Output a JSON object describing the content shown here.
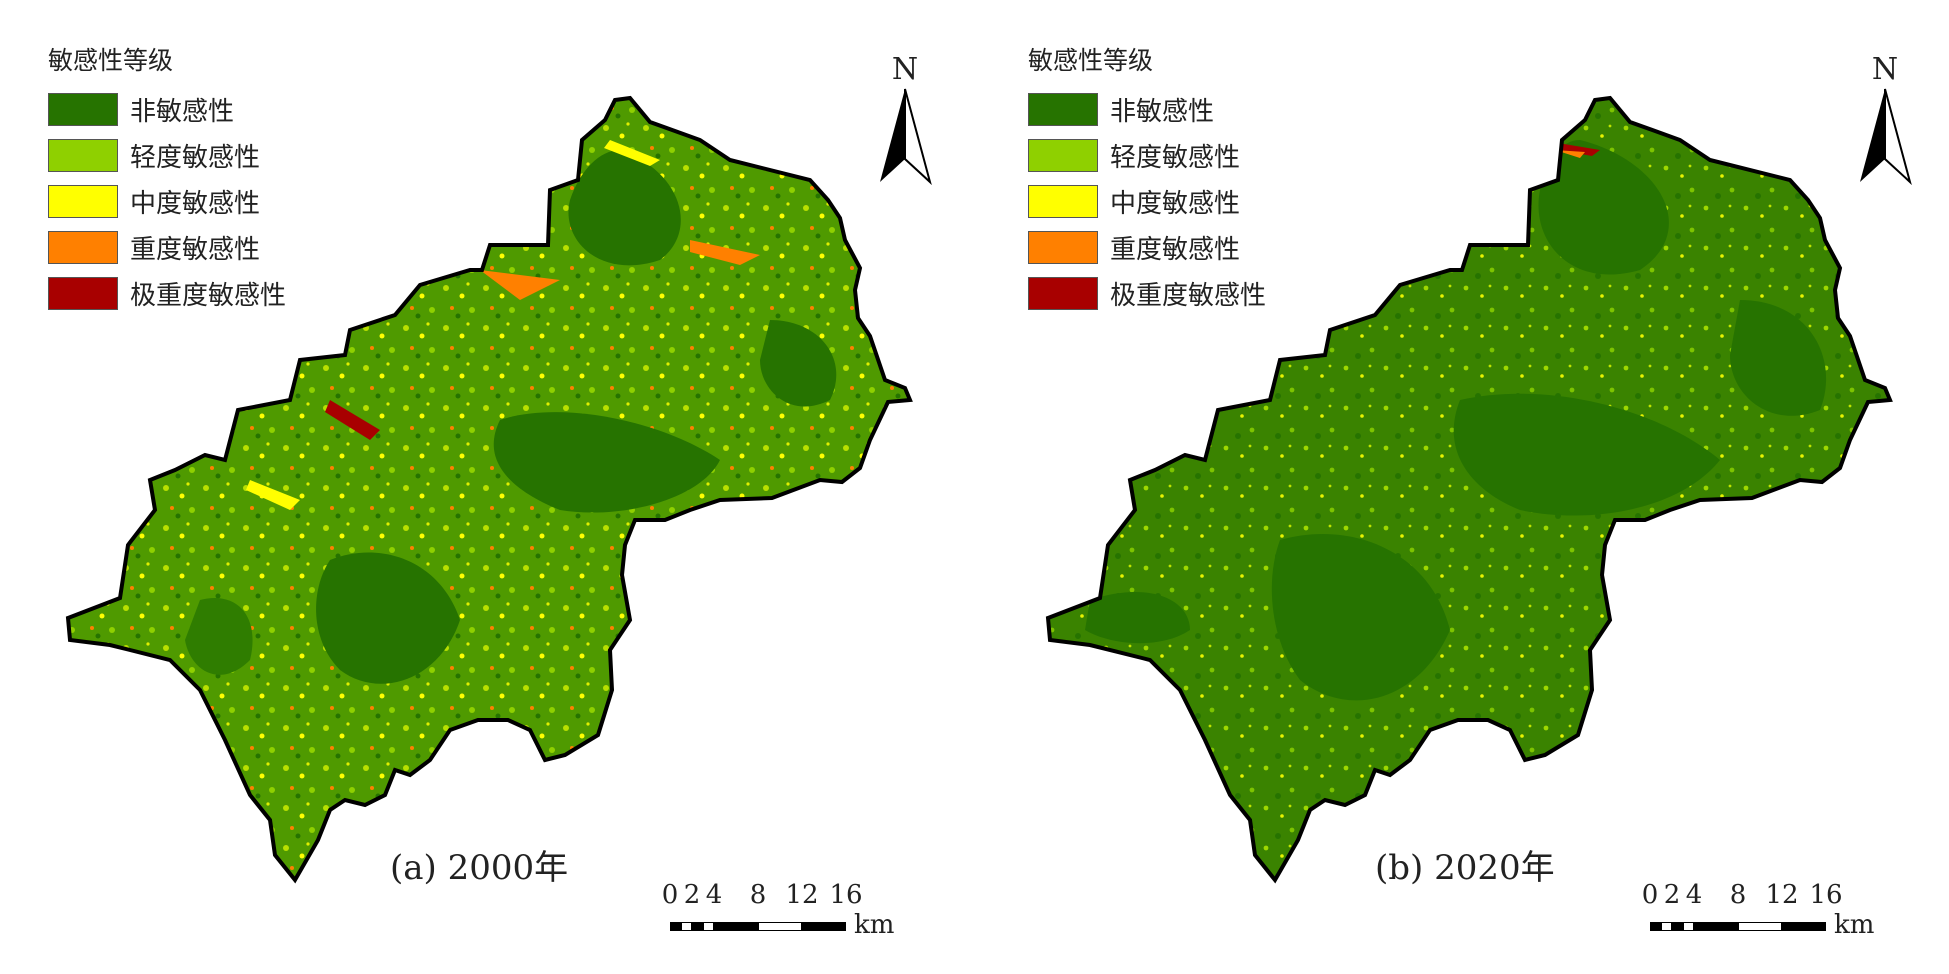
{
  "legend": {
    "title": "敏感性等级",
    "items": [
      {
        "label": "非敏感性",
        "color": "#267300"
      },
      {
        "label": "轻度敏感性",
        "color": "#8fd000"
      },
      {
        "label": "中度敏感性",
        "color": "#ffff00"
      },
      {
        "label": "重度敏感性",
        "color": "#ff8000"
      },
      {
        "label": "极重度敏感性",
        "color": "#a80000"
      }
    ]
  },
  "north_arrow": {
    "label": "N"
  },
  "panels": [
    {
      "caption": "(a) 2000年"
    },
    {
      "caption": "(b) 2020年"
    }
  ],
  "scale_bar": {
    "ticks": [
      "0",
      "2",
      "4",
      "8",
      "12",
      "16"
    ],
    "unit": "km"
  },
  "colors": {
    "non_sensitive": "#267300",
    "light": "#8fd000",
    "moderate": "#ffff00",
    "severe": "#ff8000",
    "extreme": "#a80000",
    "outline": "#000000"
  }
}
